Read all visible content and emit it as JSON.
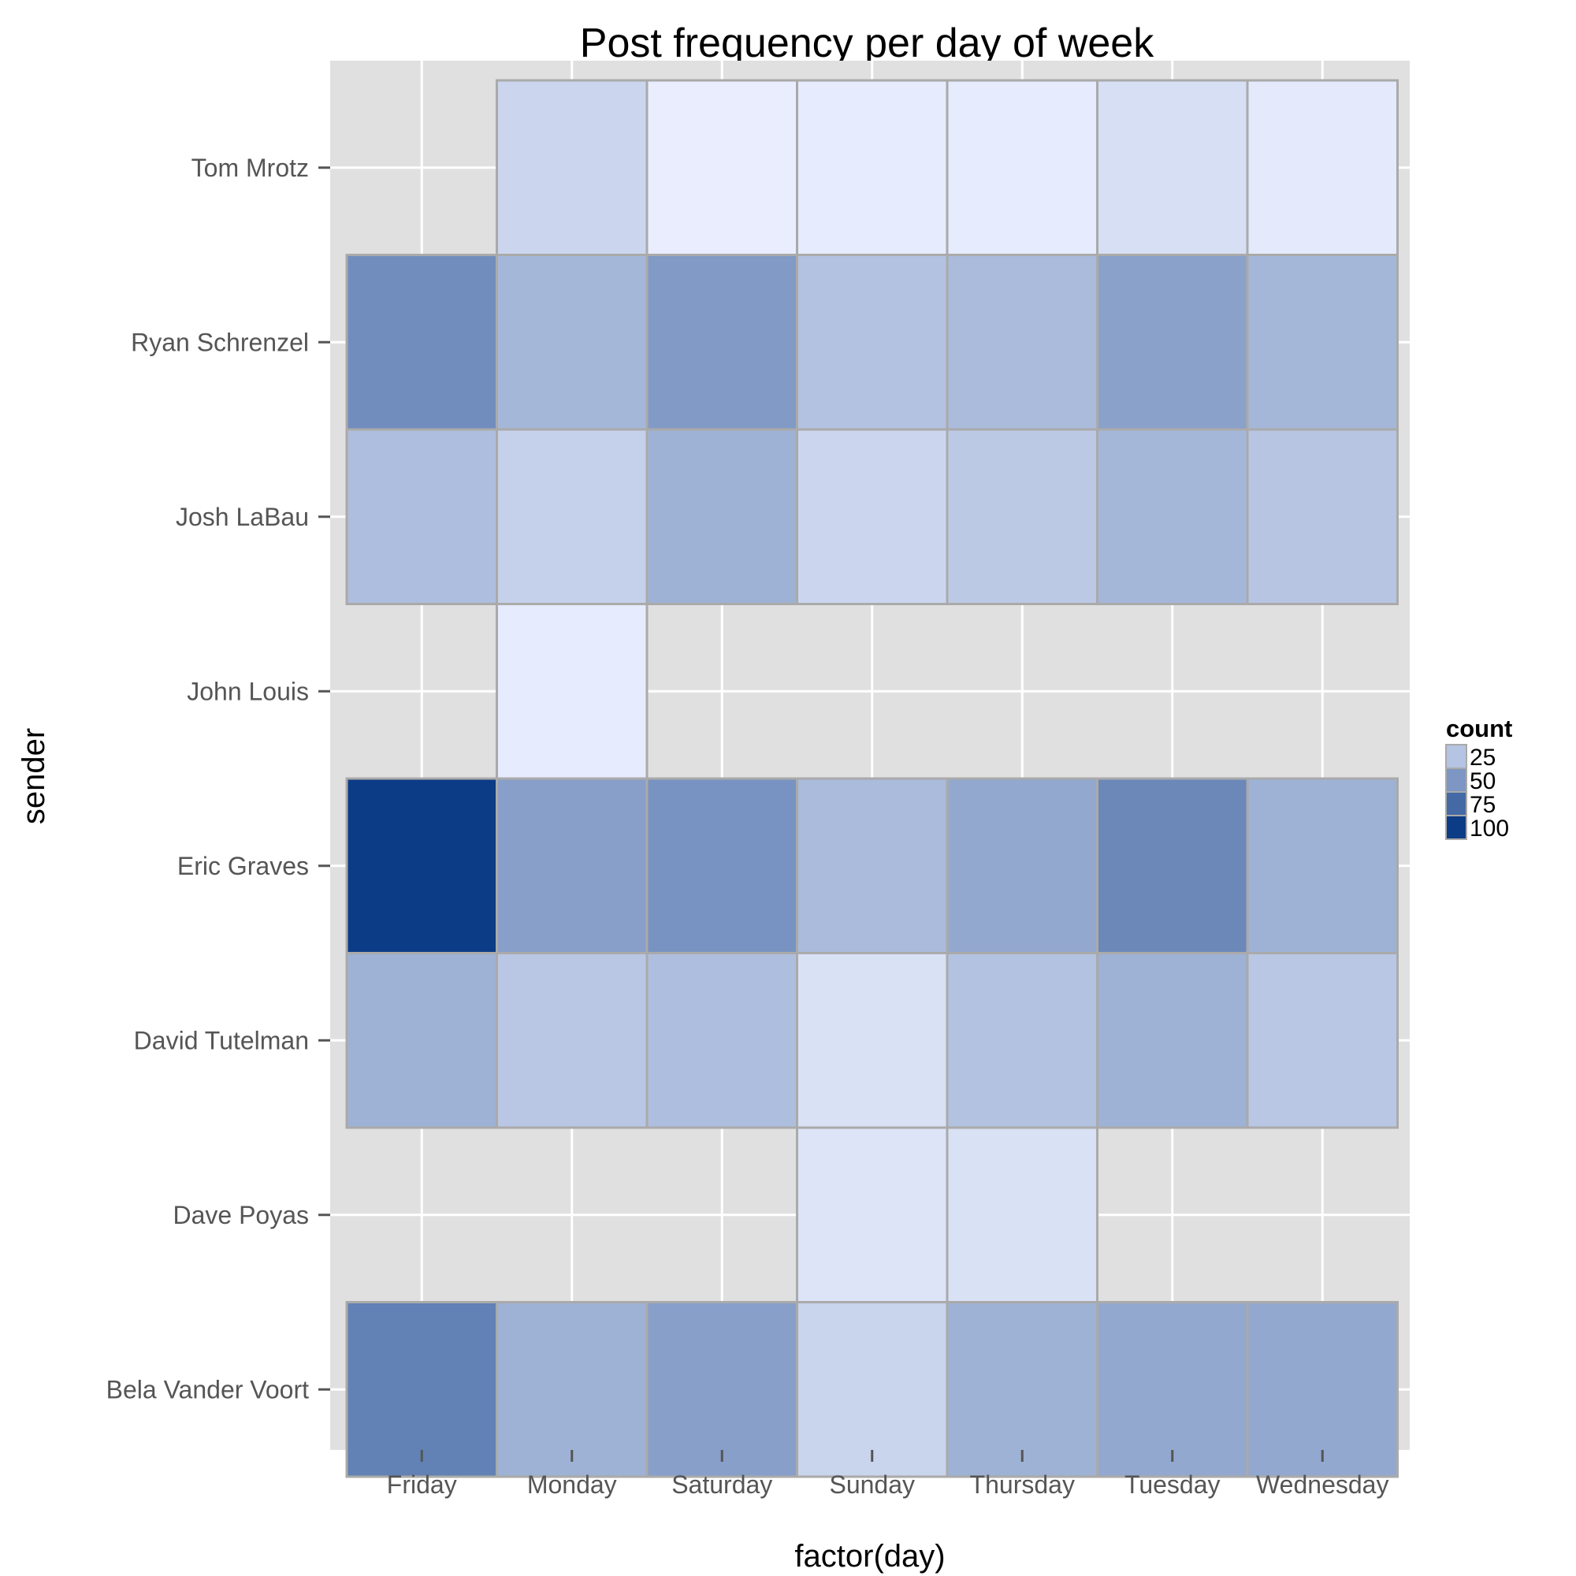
{
  "chart_data": {
    "type": "heatmap",
    "title": "Post frequency per day of week",
    "xlabel": "factor(day)",
    "ylabel": "sender",
    "x_categories": [
      "Friday",
      "Monday",
      "Saturday",
      "Sunday",
      "Thursday",
      "Tuesday",
      "Wednesday"
    ],
    "y_categories": [
      "Tom Mrotz",
      "Ryan Schrenzel",
      "Josh LaBau",
      "John Louis",
      "Eric Graves",
      "David Tutelman",
      "Dave Poyas",
      "Bela Vander Voort"
    ],
    "values": [
      [
        null,
        15,
        2,
        3,
        3,
        10,
        4
      ],
      [
        55,
        32,
        48,
        26,
        30,
        44,
        32
      ],
      [
        28,
        18,
        35,
        15,
        22,
        32,
        24
      ],
      [
        null,
        3,
        null,
        null,
        null,
        null,
        null
      ],
      [
        100,
        45,
        52,
        30,
        40,
        58,
        35
      ],
      [
        35,
        23,
        28,
        9,
        26,
        35,
        23
      ],
      [
        null,
        null,
        null,
        7,
        9,
        null,
        null
      ],
      [
        62,
        35,
        45,
        16,
        35,
        40,
        40
      ]
    ],
    "value_min": 1,
    "value_max": 100,
    "color_low": "#ebefff",
    "color_high": "#0c3c86",
    "legend": {
      "title": "count",
      "breaks": [
        25,
        50,
        75,
        100
      ],
      "labels": [
        "25",
        "50",
        "75",
        "100"
      ],
      "placement": "right"
    },
    "grid": true,
    "panel_background": "#e0e0e0",
    "tile_border": "#aaaaaa"
  }
}
